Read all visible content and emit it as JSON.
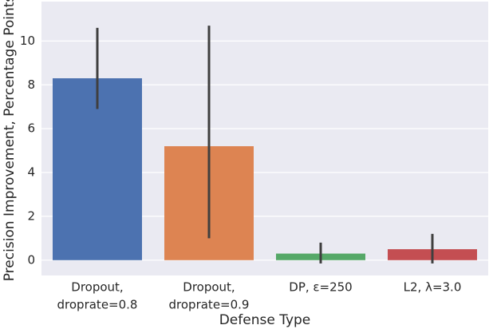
{
  "chart_data": {
    "type": "bar",
    "x_label": "Defense Type",
    "y_label": "Precision Improvement, Percentage Points",
    "categories": [
      [
        "Dropout,",
        "droprate=0.8"
      ],
      [
        "Dropout,",
        "droprate=0.9"
      ],
      [
        "DP, ε=250"
      ],
      [
        "L2, λ=3.0"
      ]
    ],
    "values": [
      8.3,
      5.2,
      0.3,
      0.5
    ],
    "ci_lower": [
      6.9,
      1.0,
      -0.15,
      -0.15
    ],
    "ci_upper": [
      10.6,
      10.7,
      0.8,
      1.2
    ],
    "colors": [
      "#4c72b0",
      "#dd8452",
      "#55a868",
      "#c44e52"
    ],
    "ylim": [
      -0.7,
      11.8
    ],
    "yticks": [
      0,
      2,
      4,
      6,
      8,
      10
    ],
    "grid": true
  }
}
